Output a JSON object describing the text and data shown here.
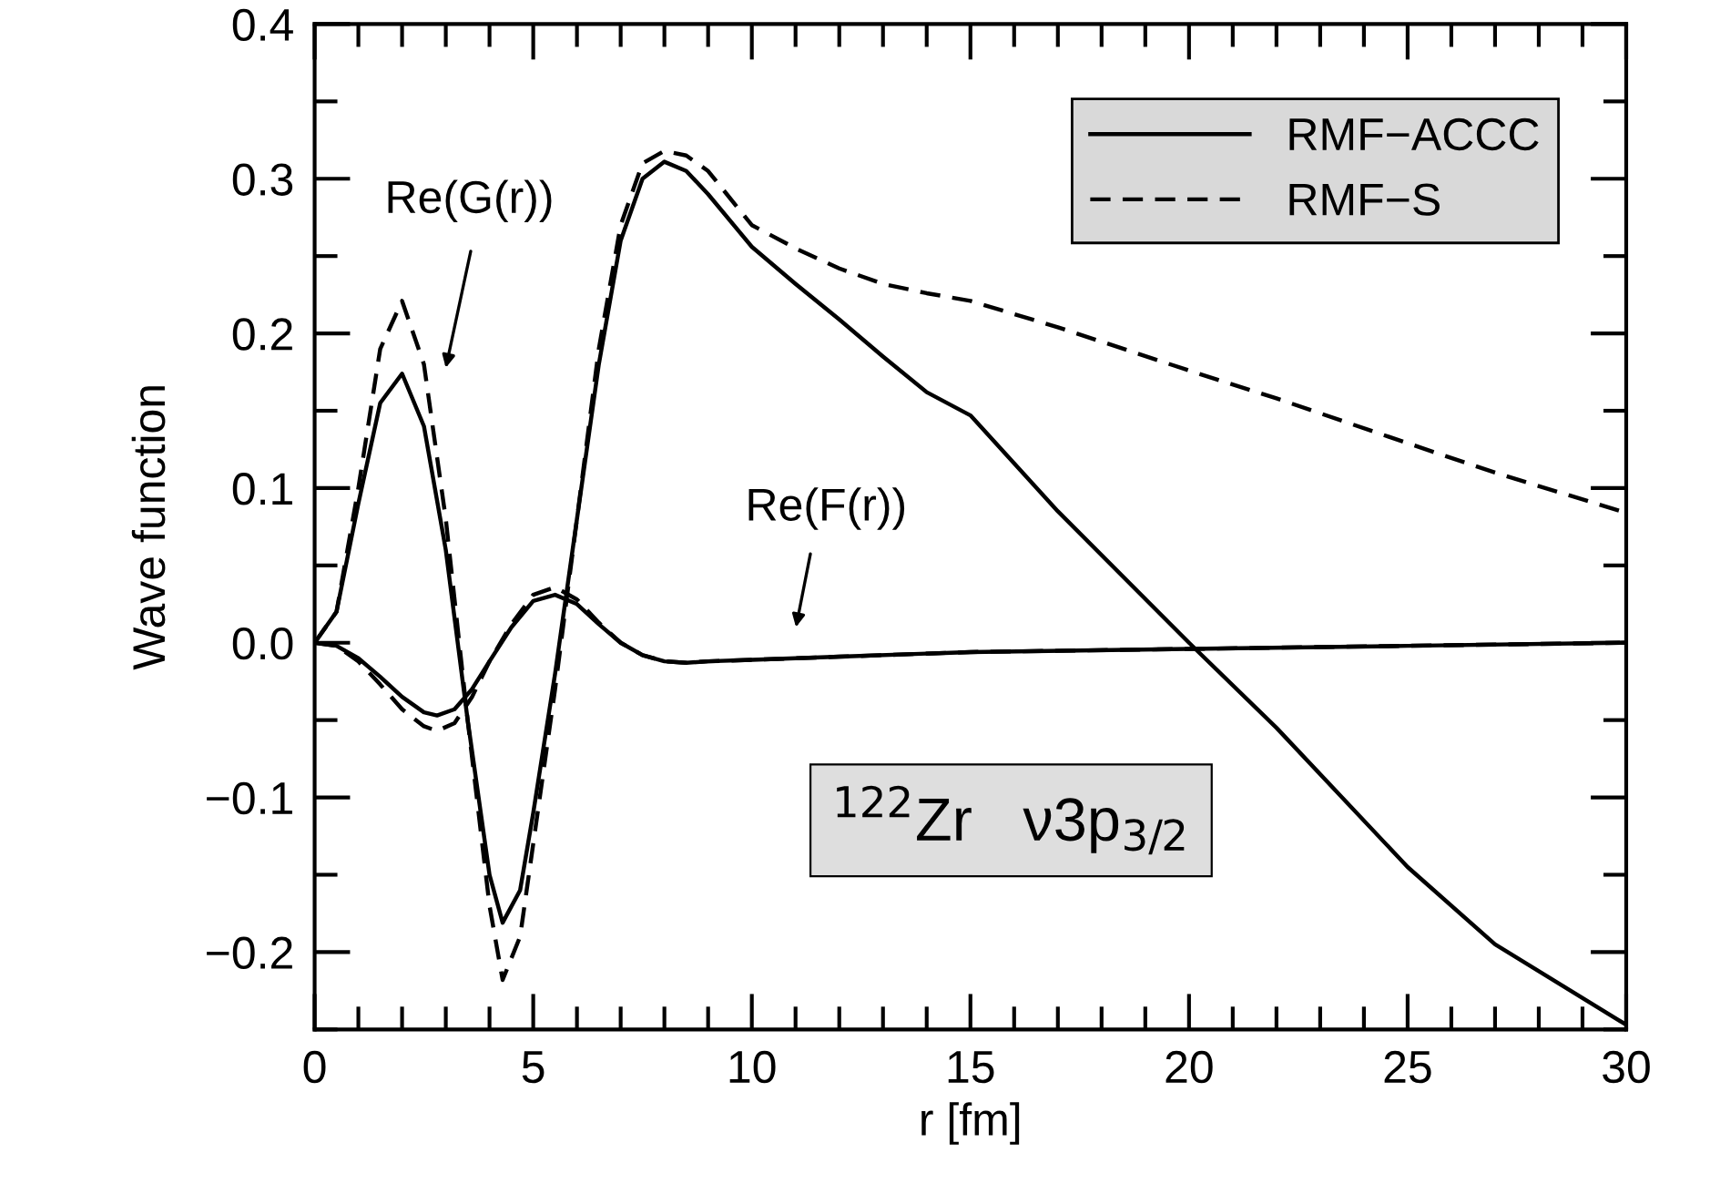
{
  "chart_data": {
    "type": "line",
    "xlabel": "r [fm]",
    "ylabel": "Wave function",
    "xlim": [
      0,
      30
    ],
    "ylim": [
      -0.25,
      0.4
    ],
    "xticks": [
      0,
      5,
      10,
      15,
      20,
      25,
      30
    ],
    "yticks": [
      {
        "value": -0.2,
        "label": "−0.2"
      },
      {
        "value": -0.1,
        "label": "−0.1"
      },
      {
        "value": 0,
        "label": "0.0"
      },
      {
        "value": 0.1,
        "label": "0.1"
      },
      {
        "value": 0.2,
        "label": "0.2"
      },
      {
        "value": 0.3,
        "label": "0.3"
      },
      {
        "value": 0.4,
        "label": "0.4"
      }
    ],
    "legend": "top right",
    "grid": false,
    "series": [
      {
        "name": "RMF−ACCC",
        "color": "#000000",
        "line_style": "solid",
        "x": [
          0,
          0.5,
          1,
          1.5,
          2,
          2.5,
          3,
          3.5,
          4,
          4.3,
          4.7,
          5,
          5.5,
          6,
          6.5,
          7,
          7.5,
          8,
          8.5,
          9,
          10,
          11,
          12,
          13,
          14,
          15,
          17,
          20,
          22,
          25,
          27,
          30
        ],
        "values": [
          0,
          0.02,
          0.09,
          0.155,
          0.174,
          0.14,
          0.06,
          -0.05,
          -0.15,
          -0.181,
          -0.16,
          -0.11,
          -0.02,
          0.08,
          0.18,
          0.26,
          0.3,
          0.311,
          0.305,
          0.29,
          0.256,
          0.232,
          0.209,
          0.185,
          0.162,
          0.147,
          0.085,
          0,
          -0.055,
          -0.145,
          -0.195,
          -0.247
        ]
      },
      {
        "name": "RMF−S",
        "color": "#000000",
        "line_style": "dashed",
        "x": [
          0,
          0.5,
          1,
          1.5,
          2,
          2.5,
          3,
          3.5,
          4,
          4.3,
          4.7,
          5,
          5.5,
          6,
          6.5,
          7,
          7.5,
          8,
          8.5,
          9,
          10,
          11,
          12,
          13,
          14,
          15,
          17,
          20,
          22,
          25,
          27,
          30
        ],
        "values": [
          0,
          0.02,
          0.1,
          0.19,
          0.221,
          0.18,
          0.08,
          -0.05,
          -0.17,
          -0.218,
          -0.19,
          -0.13,
          -0.03,
          0.08,
          0.19,
          0.27,
          0.31,
          0.318,
          0.315,
          0.305,
          0.27,
          0.255,
          0.242,
          0.232,
          0.226,
          0.221,
          0.204,
          0.176,
          0.158,
          0.129,
          0.11,
          0.084
        ]
      },
      {
        "color": "#000000",
        "line_style": "solid",
        "x": [
          0,
          0.5,
          1,
          1.5,
          2,
          2.5,
          2.8,
          3.2,
          3.6,
          4,
          4.5,
          5,
          5.5,
          6,
          6.5,
          7,
          7.5,
          8,
          8.5,
          9,
          10,
          12,
          15,
          20,
          25,
          30
        ],
        "values": [
          0,
          -0.002,
          -0.01,
          -0.022,
          -0.035,
          -0.045,
          -0.047,
          -0.043,
          -0.03,
          -0.012,
          0.01,
          0.027,
          0.031,
          0.025,
          0.012,
          0.0,
          -0.008,
          -0.012,
          -0.013,
          -0.012,
          -0.011,
          -0.009,
          -0.006,
          -0.004,
          -0.002,
          0
        ]
      },
      {
        "color": "#000000",
        "line_style": "dashed",
        "x": [
          0,
          0.5,
          1,
          1.5,
          2,
          2.5,
          2.8,
          3.2,
          3.6,
          4,
          4.5,
          5,
          5.5,
          6,
          6.5,
          7,
          7.5,
          8,
          8.5,
          9,
          10,
          12,
          15,
          20,
          25,
          30
        ],
        "values": [
          0,
          -0.002,
          -0.012,
          -0.027,
          -0.043,
          -0.054,
          -0.057,
          -0.052,
          -0.035,
          -0.012,
          0.012,
          0.031,
          0.036,
          0.028,
          0.013,
          0.0,
          -0.008,
          -0.012,
          -0.013,
          -0.012,
          -0.011,
          -0.009,
          -0.006,
          -0.004,
          -0.002,
          0
        ]
      }
    ],
    "annotations": [
      "Re(G(r))",
      "Re(F(r))",
      "$^{122}$Zr   ν3p$_{3/2}$"
    ]
  }
}
